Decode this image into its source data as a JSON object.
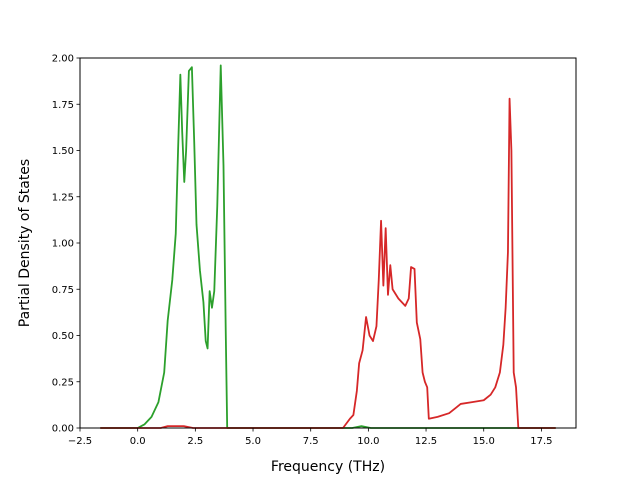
{
  "chart_data": {
    "type": "line",
    "title": "",
    "xlabel": "Frequency (THz)",
    "ylabel": "Partial Density of States",
    "xlim": [
      -2.5,
      19.0
    ],
    "ylim": [
      0.0,
      2.0
    ],
    "x_ticks": [
      -2.5,
      0.0,
      2.5,
      5.0,
      7.5,
      10.0,
      12.5,
      15.0,
      17.5
    ],
    "x_tick_labels": [
      "−2.5",
      "0.0",
      "2.5",
      "5.0",
      "7.5",
      "10.0",
      "12.5",
      "15.0",
      "17.5"
    ],
    "y_ticks": [
      0.0,
      0.25,
      0.5,
      0.75,
      1.0,
      1.25,
      1.5,
      1.75,
      2.0
    ],
    "y_tick_labels": [
      "0.00",
      "0.25",
      "0.50",
      "0.75",
      "1.00",
      "1.25",
      "1.50",
      "1.75",
      "2.00"
    ],
    "grid": false,
    "legend": "none",
    "series": [
      {
        "color": "#2ca02c",
        "points": [
          [
            -1.6,
            0.0
          ],
          [
            0.0,
            0.0
          ],
          [
            0.3,
            0.02
          ],
          [
            0.6,
            0.06
          ],
          [
            0.9,
            0.14
          ],
          [
            1.15,
            0.3
          ],
          [
            1.3,
            0.58
          ],
          [
            1.5,
            0.8
          ],
          [
            1.65,
            1.05
          ],
          [
            1.75,
            1.5
          ],
          [
            1.85,
            1.91
          ],
          [
            1.93,
            1.6
          ],
          [
            2.02,
            1.33
          ],
          [
            2.1,
            1.5
          ],
          [
            2.22,
            1.93
          ],
          [
            2.35,
            1.95
          ],
          [
            2.45,
            1.55
          ],
          [
            2.55,
            1.1
          ],
          [
            2.7,
            0.85
          ],
          [
            2.85,
            0.68
          ],
          [
            2.95,
            0.47
          ],
          [
            3.03,
            0.43
          ],
          [
            3.12,
            0.74
          ],
          [
            3.22,
            0.65
          ],
          [
            3.32,
            0.74
          ],
          [
            3.45,
            1.2
          ],
          [
            3.6,
            1.96
          ],
          [
            3.72,
            1.42
          ],
          [
            3.82,
            0.5
          ],
          [
            3.88,
            0.0
          ],
          [
            9.3,
            0.0
          ],
          [
            9.7,
            0.01
          ],
          [
            10.1,
            0.0
          ],
          [
            18.1,
            0.0
          ]
        ]
      },
      {
        "color": "#d62728",
        "points": [
          [
            -1.6,
            0.0
          ],
          [
            1.0,
            0.0
          ],
          [
            1.3,
            0.01
          ],
          [
            2.0,
            0.01
          ],
          [
            2.4,
            0.0
          ],
          [
            3.0,
            0.0
          ],
          [
            8.9,
            0.0
          ],
          [
            9.2,
            0.05
          ],
          [
            9.35,
            0.07
          ],
          [
            9.5,
            0.2
          ],
          [
            9.6,
            0.35
          ],
          [
            9.75,
            0.42
          ],
          [
            9.9,
            0.6
          ],
          [
            10.05,
            0.5
          ],
          [
            10.2,
            0.47
          ],
          [
            10.35,
            0.55
          ],
          [
            10.45,
            0.8
          ],
          [
            10.55,
            1.12
          ],
          [
            10.65,
            0.77
          ],
          [
            10.75,
            1.08
          ],
          [
            10.85,
            0.72
          ],
          [
            10.95,
            0.88
          ],
          [
            11.05,
            0.75
          ],
          [
            11.3,
            0.7
          ],
          [
            11.6,
            0.66
          ],
          [
            11.75,
            0.7
          ],
          [
            11.85,
            0.87
          ],
          [
            12.0,
            0.86
          ],
          [
            12.1,
            0.57
          ],
          [
            12.25,
            0.48
          ],
          [
            12.35,
            0.3
          ],
          [
            12.45,
            0.25
          ],
          [
            12.55,
            0.22
          ],
          [
            12.62,
            0.05
          ],
          [
            13.0,
            0.06
          ],
          [
            13.5,
            0.08
          ],
          [
            13.8,
            0.11
          ],
          [
            14.0,
            0.13
          ],
          [
            14.5,
            0.14
          ],
          [
            15.0,
            0.15
          ],
          [
            15.3,
            0.18
          ],
          [
            15.5,
            0.22
          ],
          [
            15.7,
            0.3
          ],
          [
            15.85,
            0.45
          ],
          [
            15.95,
            0.65
          ],
          [
            16.05,
            0.95
          ],
          [
            16.12,
            1.78
          ],
          [
            16.2,
            1.5
          ],
          [
            16.3,
            0.3
          ],
          [
            16.4,
            0.22
          ],
          [
            16.5,
            0.0
          ],
          [
            18.1,
            0.0
          ]
        ]
      }
    ]
  }
}
